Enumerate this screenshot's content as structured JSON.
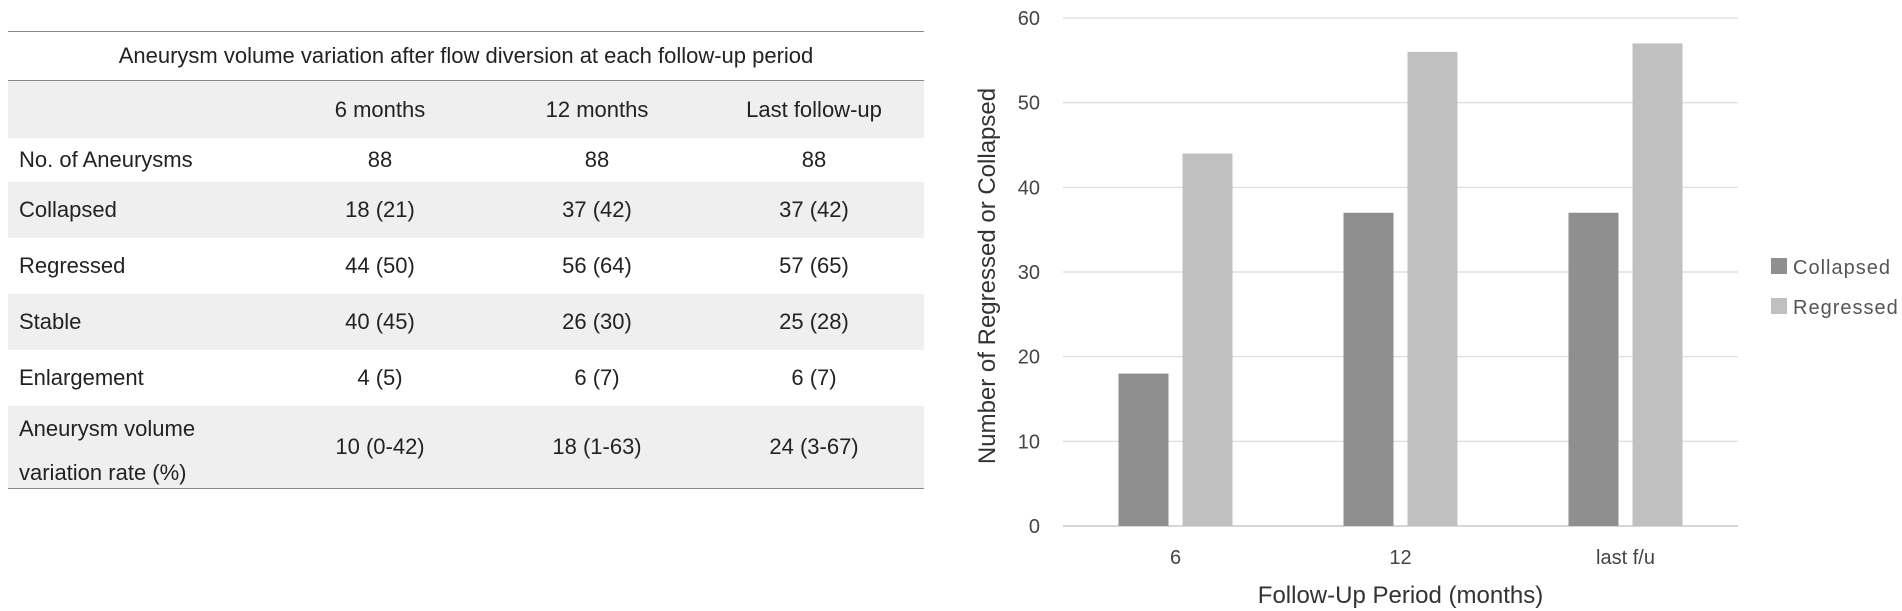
{
  "table": {
    "title": "Aneurysm volume variation after flow diversion at each follow-up period",
    "headers": [
      "",
      "6 months",
      "12 months",
      "Last follow-up"
    ],
    "rows": [
      {
        "label": "No. of Aneurysms",
        "values": [
          "88",
          "88",
          "88"
        ]
      },
      {
        "label": "Collapsed",
        "values": [
          "18 (21)",
          "37 (42)",
          "37 (42)"
        ]
      },
      {
        "label": "Regressed",
        "values": [
          "44 (50)",
          "56 (64)",
          "57 (65)"
        ]
      },
      {
        "label": "Stable",
        "values": [
          "40 (45)",
          "26 (30)",
          "25 (28)"
        ]
      },
      {
        "label": "Enlargement",
        "values": [
          "4 (5)",
          "6 (7)",
          "6 (7)"
        ]
      }
    ],
    "last_row": {
      "label_line1": "Aneurysm volume",
      "label_line2": "variation rate (%)",
      "values": [
        "10 (0-42)",
        "18 (1-63)",
        "24 (3-67)"
      ]
    }
  },
  "chart_data": {
    "type": "bar",
    "categories": [
      "6",
      "12",
      "last f/u"
    ],
    "series": [
      {
        "name": "Collapsed",
        "values": [
          18,
          37,
          37
        ],
        "color": "#8f8f8f"
      },
      {
        "name": "Regressed",
        "values": [
          44,
          56,
          57
        ],
        "color": "#c0c0c0"
      }
    ],
    "xlabel": "Follow-Up Period (months)",
    "ylabel": "Number of Regressed or Collapsed",
    "ylim": [
      0,
      60
    ],
    "yticks": [
      0,
      10,
      20,
      30,
      40,
      50,
      60
    ],
    "grid": true,
    "legend": "right"
  }
}
